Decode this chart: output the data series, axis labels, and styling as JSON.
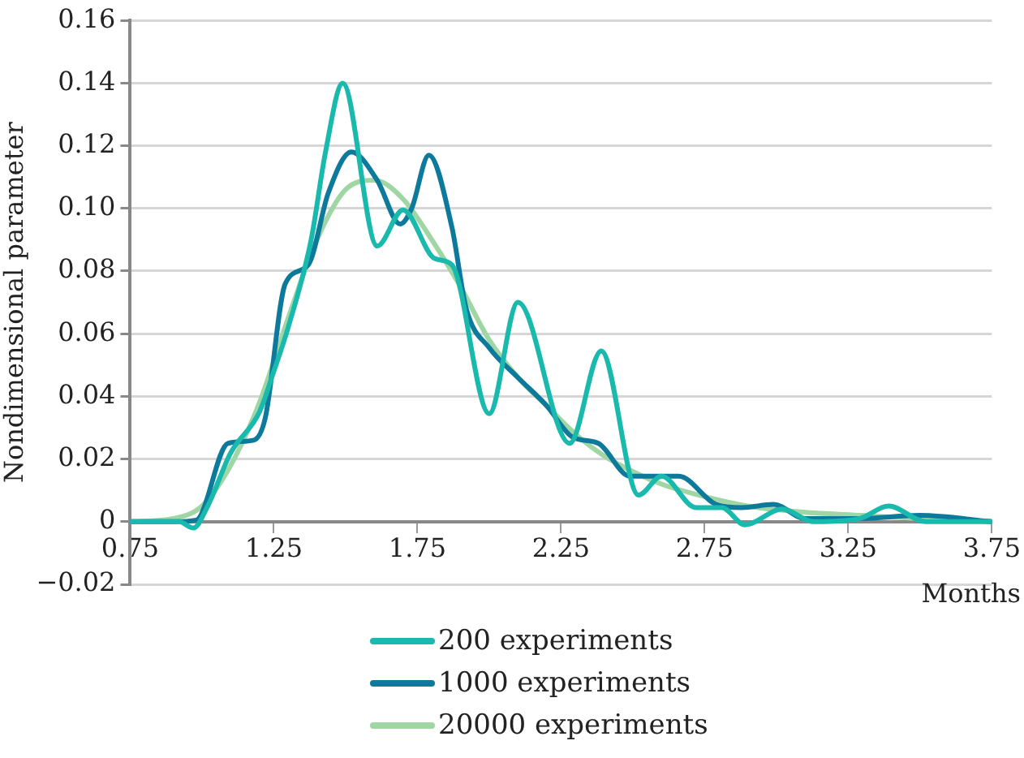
{
  "chart_data": {
    "type": "line",
    "xlabel": "Months",
    "ylabel": "Nondimensional parameter",
    "xlim": [
      0.75,
      3.75
    ],
    "xticks": [
      0.75,
      1.25,
      1.75,
      2.25,
      2.75,
      3.25,
      3.75
    ],
    "ylim": [
      -0.02,
      0.16
    ],
    "yticks": [
      {
        "value": -0.02,
        "label": "−0.02"
      },
      0,
      0.02,
      0.04,
      0.06,
      0.08,
      {
        "value": 0.1,
        "label": "0.10"
      },
      0.12,
      0.14,
      0.16
    ],
    "grid": "y",
    "legend": "bottom",
    "marker": "none",
    "line_style": "solid",
    "series": [
      {
        "name": "200 experiments",
        "color": "#19b9ad",
        "x": [
          0.75,
          0.85,
          0.92,
          0.97,
          1.02,
          1.1,
          1.2,
          1.25,
          1.3,
          1.38,
          1.43,
          1.49,
          1.61,
          1.7,
          1.81,
          1.87,
          2.0,
          2.1,
          2.28,
          2.39,
          2.52,
          2.6,
          2.72,
          2.81,
          2.89,
          3.02,
          3.13,
          3.29,
          3.39,
          3.52,
          3.75
        ],
        "values": [
          0,
          0,
          0,
          -0.002,
          0.005,
          0.022,
          0.035,
          0.048,
          0.062,
          0.09,
          0.118,
          0.14,
          0.088,
          0.0995,
          0.084,
          0.082,
          0.0345,
          0.07,
          0.025,
          0.0545,
          0.0085,
          0.0145,
          0.0045,
          0.0045,
          -0.001,
          0.004,
          0,
          0.001,
          0.005,
          0,
          0
        ]
      },
      {
        "name": "1000 experiments",
        "color": "#0d7a9c",
        "x": [
          0.75,
          0.9,
          0.98,
          1.09,
          1.18,
          1.22,
          1.29,
          1.37,
          1.44,
          1.52,
          1.61,
          1.69,
          1.73,
          1.79,
          1.87,
          1.92,
          2.0,
          2.1,
          2.2,
          2.29,
          2.38,
          2.49,
          2.66,
          2.79,
          2.88,
          2.99,
          3.1,
          3.29,
          3.5,
          3.75
        ],
        "values": [
          0,
          0,
          0.0005,
          0.025,
          0.026,
          0.033,
          0.076,
          0.082,
          0.105,
          0.118,
          0.109,
          0.095,
          0.1,
          0.117,
          0.094,
          0.068,
          0.0555,
          0.046,
          0.037,
          0.027,
          0.025,
          0.0145,
          0.0145,
          0.0055,
          0.0045,
          0.0055,
          0.001,
          0.001,
          0.002,
          0
        ]
      },
      {
        "name": "20000 experiments",
        "color": "#9fd6a3",
        "x": [
          0.75,
          0.9,
          1.0,
          1.1,
          1.2,
          1.3,
          1.4,
          1.5,
          1.6,
          1.7,
          1.8,
          1.9,
          2.0,
          2.1,
          2.2,
          2.3,
          2.4,
          2.5,
          2.6,
          2.75,
          2.9,
          3.1,
          3.3,
          3.5,
          3.75
        ],
        "values": [
          0,
          0.001,
          0.005,
          0.018,
          0.038,
          0.065,
          0.09,
          0.106,
          0.109,
          0.103,
          0.09,
          0.075,
          0.058,
          0.046,
          0.037,
          0.028,
          0.021,
          0.016,
          0.012,
          0.008,
          0.005,
          0.003,
          0.002,
          0.001,
          0
        ]
      }
    ]
  }
}
